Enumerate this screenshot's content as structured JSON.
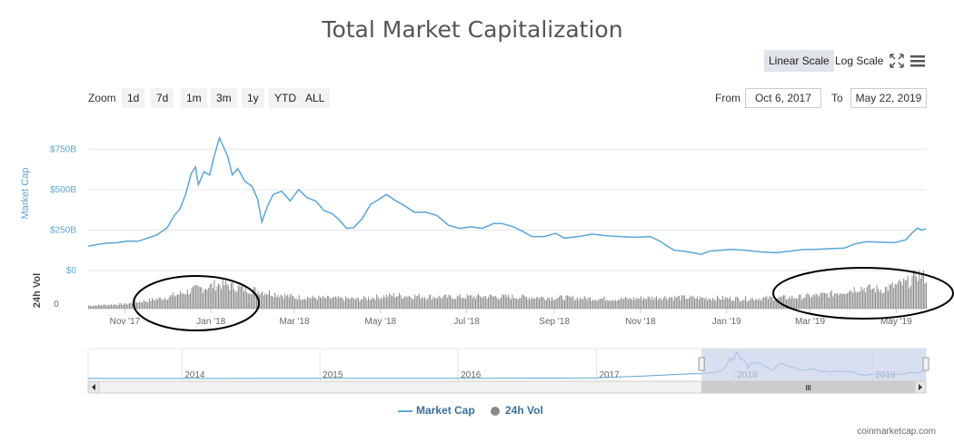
{
  "title": "Total Market Capitalization",
  "toolbar": {
    "linear_label": "Linear Scale",
    "log_label": "Log Scale",
    "fullscreen_icon": "fullscreen-icon",
    "menu_icon": "menu-icon"
  },
  "range_selector": {
    "zoom_label": "Zoom",
    "buttons": [
      "1d",
      "7d",
      "1m",
      "3m",
      "1y",
      "YTD",
      "ALL"
    ],
    "from_label": "From",
    "to_label": "To",
    "from_value": "Oct 6, 2017",
    "to_value": "May 22, 2019"
  },
  "legend": {
    "market_cap": "Market Cap",
    "volume": "24h Vol"
  },
  "credit": "coinmarketcap.com",
  "colors": {
    "market_cap_line": "#5aa6d8",
    "volume_bars": "#888888",
    "navigator_mask": "#c7d1ea",
    "annotation_ellipse": "#000000"
  },
  "chart_data": {
    "type": "line",
    "title": "Total Market Capitalization",
    "xlabel": "",
    "ylabel": "Market Cap",
    "y_ticks": [
      "$0",
      "$250B",
      "$500B",
      "$750B"
    ],
    "y_tick_values": [
      0,
      250,
      500,
      750
    ],
    "ylim": [
      0,
      830
    ],
    "x_ticks": [
      "Nov '17",
      "Jan '18",
      "Mar '18",
      "May '18",
      "Jul '18",
      "Sep '18",
      "Nov '18",
      "Jan '19",
      "Mar '19",
      "May '19"
    ],
    "x_tick_dates": [
      "2017-11-01",
      "2018-01-01",
      "2018-03-01",
      "2018-05-01",
      "2018-07-01",
      "2018-09-01",
      "2018-11-01",
      "2019-01-01",
      "2019-03-01",
      "2019-05-01"
    ],
    "grid": true,
    "series": [
      {
        "name": "Market Cap",
        "unit": "USD billions",
        "points": [
          [
            "2017-10-06",
            150
          ],
          [
            "2017-10-13",
            162
          ],
          [
            "2017-10-20",
            170
          ],
          [
            "2017-10-27",
            172
          ],
          [
            "2017-11-03",
            182
          ],
          [
            "2017-11-10",
            180
          ],
          [
            "2017-11-17",
            200
          ],
          [
            "2017-11-24",
            222
          ],
          [
            "2017-12-01",
            265
          ],
          [
            "2017-12-06",
            340
          ],
          [
            "2017-12-10",
            380
          ],
          [
            "2017-12-14",
            470
          ],
          [
            "2017-12-18",
            600
          ],
          [
            "2017-12-21",
            640
          ],
          [
            "2017-12-23",
            530
          ],
          [
            "2017-12-27",
            610
          ],
          [
            "2017-12-31",
            590
          ],
          [
            "2018-01-03",
            700
          ],
          [
            "2018-01-07",
            820
          ],
          [
            "2018-01-10",
            760
          ],
          [
            "2018-01-13",
            700
          ],
          [
            "2018-01-16",
            590
          ],
          [
            "2018-01-20",
            630
          ],
          [
            "2018-01-25",
            550
          ],
          [
            "2018-01-30",
            520
          ],
          [
            "2018-02-03",
            440
          ],
          [
            "2018-02-06",
            300
          ],
          [
            "2018-02-10",
            400
          ],
          [
            "2018-02-14",
            470
          ],
          [
            "2018-02-20",
            490
          ],
          [
            "2018-02-26",
            430
          ],
          [
            "2018-03-04",
            500
          ],
          [
            "2018-03-10",
            450
          ],
          [
            "2018-03-16",
            430
          ],
          [
            "2018-03-22",
            370
          ],
          [
            "2018-03-28",
            350
          ],
          [
            "2018-04-02",
            310
          ],
          [
            "2018-04-07",
            260
          ],
          [
            "2018-04-12",
            265
          ],
          [
            "2018-04-18",
            320
          ],
          [
            "2018-04-24",
            410
          ],
          [
            "2018-04-30",
            440
          ],
          [
            "2018-05-05",
            470
          ],
          [
            "2018-05-12",
            430
          ],
          [
            "2018-05-18",
            400
          ],
          [
            "2018-05-25",
            360
          ],
          [
            "2018-06-02",
            360
          ],
          [
            "2018-06-10",
            340
          ],
          [
            "2018-06-18",
            280
          ],
          [
            "2018-06-26",
            260
          ],
          [
            "2018-07-04",
            270
          ],
          [
            "2018-07-12",
            260
          ],
          [
            "2018-07-20",
            290
          ],
          [
            "2018-07-26",
            290
          ],
          [
            "2018-08-03",
            270
          ],
          [
            "2018-08-10",
            240
          ],
          [
            "2018-08-16",
            210
          ],
          [
            "2018-08-25",
            210
          ],
          [
            "2018-09-02",
            230
          ],
          [
            "2018-09-08",
            200
          ],
          [
            "2018-09-18",
            210
          ],
          [
            "2018-09-28",
            225
          ],
          [
            "2018-10-08",
            215
          ],
          [
            "2018-10-18",
            210
          ],
          [
            "2018-10-28",
            205
          ],
          [
            "2018-11-08",
            210
          ],
          [
            "2018-11-15",
            180
          ],
          [
            "2018-11-20",
            150
          ],
          [
            "2018-11-25",
            125
          ],
          [
            "2018-12-01",
            120
          ],
          [
            "2018-12-08",
            110
          ],
          [
            "2018-12-14",
            100
          ],
          [
            "2018-12-20",
            120
          ],
          [
            "2018-12-27",
            125
          ],
          [
            "2019-01-05",
            130
          ],
          [
            "2019-01-15",
            125
          ],
          [
            "2019-01-25",
            115
          ],
          [
            "2019-02-05",
            110
          ],
          [
            "2019-02-15",
            120
          ],
          [
            "2019-02-25",
            130
          ],
          [
            "2019-03-05",
            130
          ],
          [
            "2019-03-15",
            135
          ],
          [
            "2019-03-25",
            138
          ],
          [
            "2019-04-02",
            165
          ],
          [
            "2019-04-10",
            178
          ],
          [
            "2019-04-20",
            175
          ],
          [
            "2019-04-30",
            172
          ],
          [
            "2019-05-08",
            190
          ],
          [
            "2019-05-12",
            230
          ],
          [
            "2019-05-16",
            262
          ],
          [
            "2019-05-19",
            250
          ],
          [
            "2019-05-22",
            258
          ]
        ]
      },
      {
        "name": "24h Vol",
        "unit": "relative",
        "points": [
          [
            "2017-10-06",
            0.08
          ],
          [
            "2017-11-01",
            0.12
          ],
          [
            "2017-12-01",
            0.3
          ],
          [
            "2017-12-20",
            0.5
          ],
          [
            "2018-01-08",
            0.65
          ],
          [
            "2018-01-20",
            0.55
          ],
          [
            "2018-02-06",
            0.45
          ],
          [
            "2018-03-01",
            0.3
          ],
          [
            "2018-04-15",
            0.25
          ],
          [
            "2018-05-10",
            0.35
          ],
          [
            "2018-06-15",
            0.3
          ],
          [
            "2018-07-15",
            0.32
          ],
          [
            "2018-08-15",
            0.3
          ],
          [
            "2018-09-15",
            0.28
          ],
          [
            "2018-10-15",
            0.25
          ],
          [
            "2018-11-20",
            0.3
          ],
          [
            "2018-12-15",
            0.28
          ],
          [
            "2019-01-15",
            0.26
          ],
          [
            "2019-02-20",
            0.3
          ],
          [
            "2019-03-15",
            0.38
          ],
          [
            "2019-04-05",
            0.55
          ],
          [
            "2019-04-20",
            0.5
          ],
          [
            "2019-05-10",
            0.7
          ],
          [
            "2019-05-15",
            0.95
          ],
          [
            "2019-05-22",
            0.8
          ]
        ]
      }
    ],
    "navigator": {
      "year_labels": [
        "2014",
        "2015",
        "2016",
        "2017",
        "2018",
        "2019"
      ],
      "year_dates": [
        "2014-01-01",
        "2015-01-01",
        "2016-01-01",
        "2017-01-01",
        "2018-01-01",
        "2019-01-01"
      ],
      "start": "2013-04-28",
      "end": "2019-05-22",
      "selected_from": "2017-10-06",
      "selected_to": "2019-05-22"
    }
  }
}
